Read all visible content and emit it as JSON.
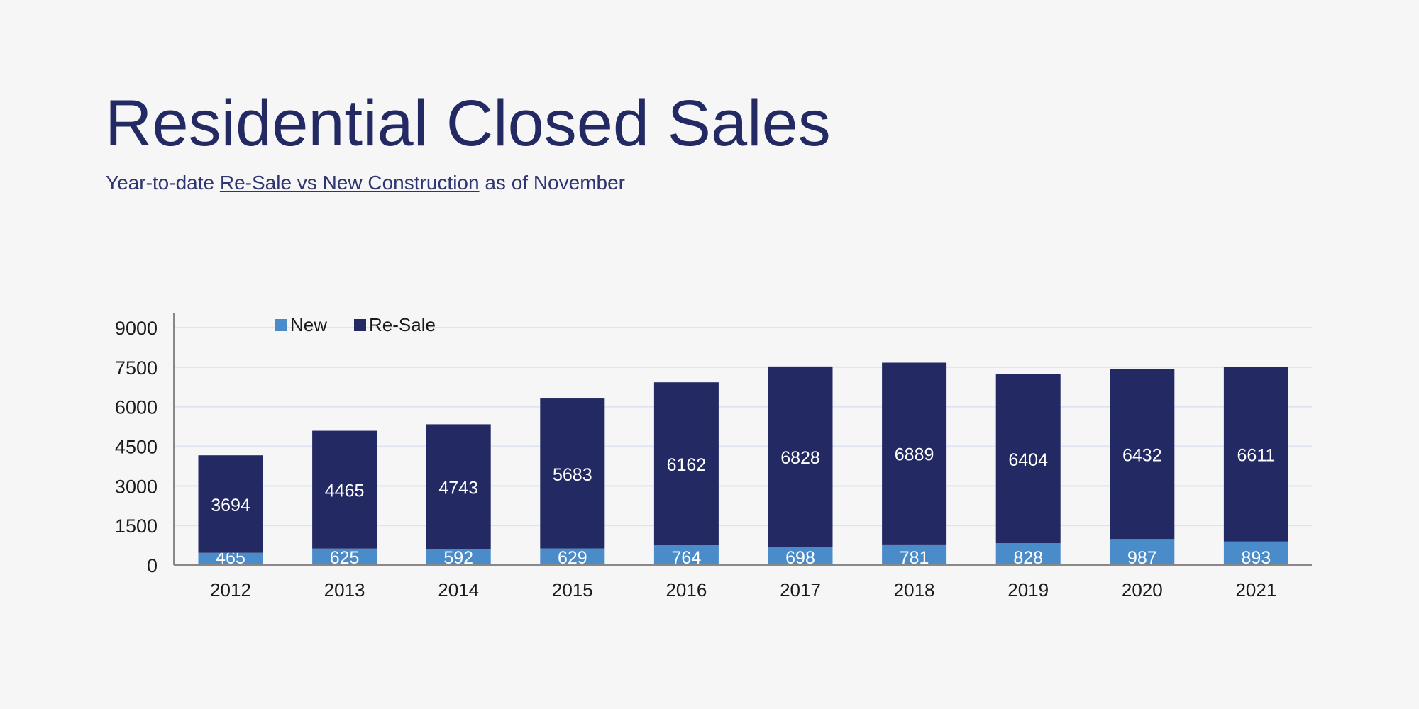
{
  "header": {
    "title": "Residential Closed Sales",
    "subtitle_pre": "Year-to-date ",
    "subtitle_link": "Re-Sale vs New Construction",
    "subtitle_post": " as of November"
  },
  "chart_data": {
    "type": "bar",
    "stacked": true,
    "categories": [
      "2012",
      "2013",
      "2014",
      "2015",
      "2016",
      "2017",
      "2018",
      "2019",
      "2020",
      "2021"
    ],
    "series": [
      {
        "name": "New",
        "color": "#4a8cc9",
        "values": [
          465,
          625,
          592,
          629,
          764,
          698,
          781,
          828,
          987,
          893
        ]
      },
      {
        "name": "Re-Sale",
        "color": "#232a63",
        "values": [
          3694,
          4465,
          4743,
          5683,
          6162,
          6828,
          6889,
          6404,
          6432,
          6611
        ]
      }
    ],
    "yticks": [
      "0",
      "1500",
      "3000",
      "4500",
      "6000",
      "7500",
      "9000"
    ],
    "ylim": [
      0,
      9000
    ],
    "grid": true,
    "legend_position": "top-left",
    "data_labels": true
  }
}
